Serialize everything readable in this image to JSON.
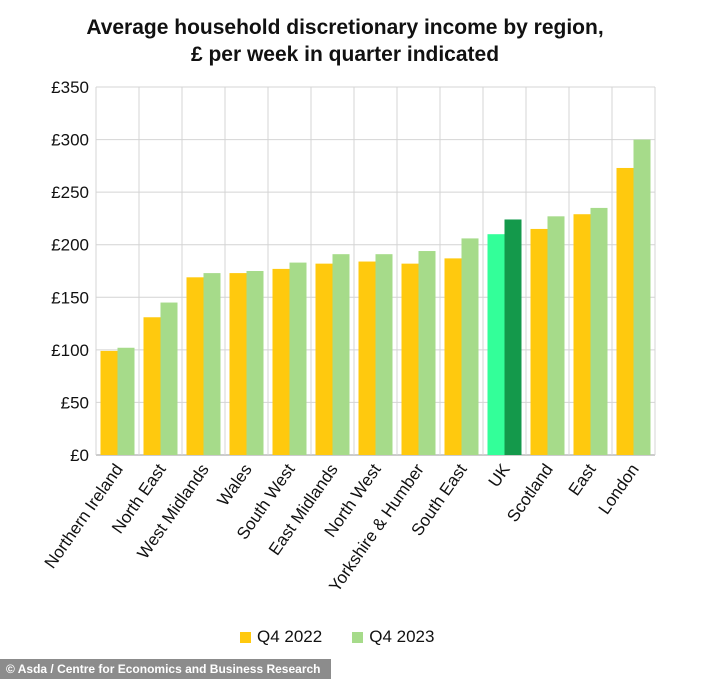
{
  "chart_data": {
    "type": "bar",
    "title_lines": [
      "Average household discretionary income by region,",
      "£ per week in quarter indicated"
    ],
    "categories": [
      "Northern Ireland",
      "North East",
      "West Midlands",
      "Wales",
      "South West",
      "East Midlands",
      "North West",
      "Yorkshire & Humber",
      "South East",
      "UK",
      "Scotland",
      "East",
      "London"
    ],
    "series": [
      {
        "name": "Q4 2022",
        "color": "#FFC90E",
        "values": [
          99,
          131,
          169,
          173,
          177,
          182,
          184,
          182,
          187,
          210,
          215,
          229,
          273
        ]
      },
      {
        "name": "Q4 2023",
        "color": "#A6DB8A",
        "values": [
          102,
          145,
          173,
          175,
          183,
          191,
          191,
          194,
          206,
          224,
          227,
          235,
          300
        ]
      }
    ],
    "highlight": {
      "category": "UK",
      "colors": [
        "#33FF99",
        "#14994B"
      ]
    },
    "y_ticks": [
      "£0",
      "£50",
      "£100",
      "£150",
      "£200",
      "£250",
      "£300",
      "£350"
    ],
    "ylim": [
      0,
      350
    ],
    "grid": true,
    "legend_position": "bottom"
  },
  "credit": "© Asda / Centre for Economics and Business Research"
}
